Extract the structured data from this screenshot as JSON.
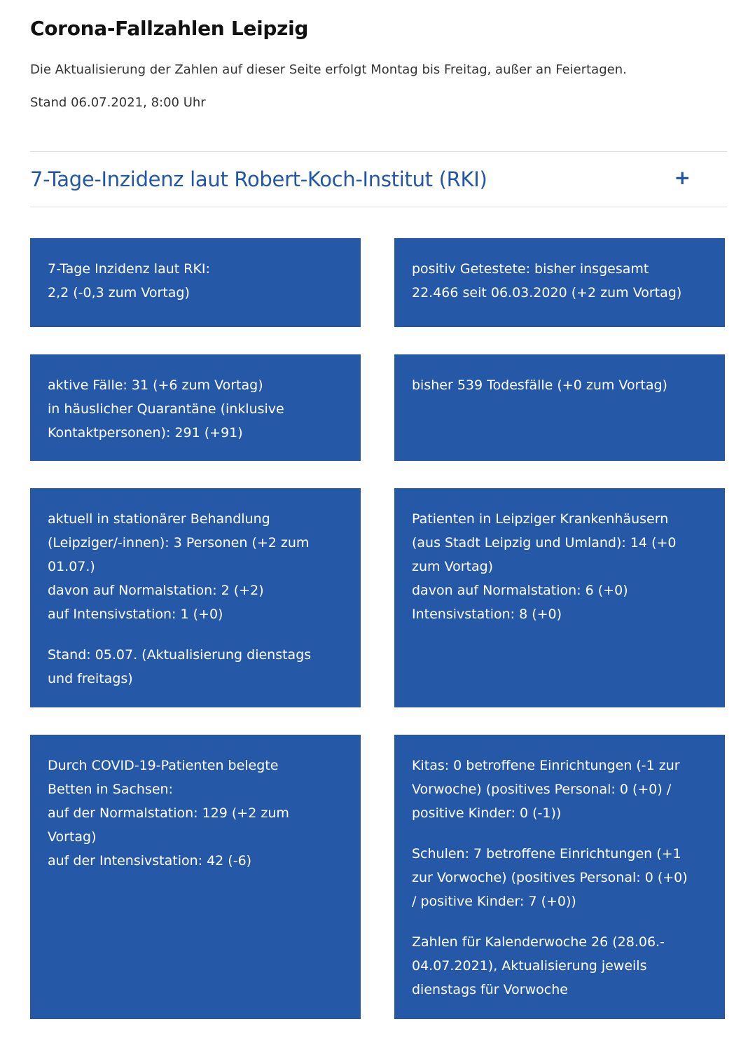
{
  "header": {
    "title": "Corona-Fallzahlen Leipzig",
    "intro": "Die Aktualisierung der Zahlen auf dieser Seite erfolgt Montag bis Freitag, außer an Feiertagen.",
    "stand": "Stand 06.07.2021, 8:00 Uhr"
  },
  "accordion": {
    "title": "7-Tage-Inzidenz laut Robert-Koch-Institut (RKI)",
    "toggle": "+"
  },
  "cards": {
    "inzidenz": {
      "p1": [
        "7-Tage Inzidenz laut RKI:",
        "2,2 (-0,3 zum Vortag)"
      ]
    },
    "positiv": {
      "p1": [
        "positiv Getestete: bisher insgesamt",
        "22.466 seit 06.03.2020 (+2 zum Vortag)"
      ]
    },
    "aktiv": {
      "p1": [
        "aktive Fälle: 31 (+6 zum Vortag)",
        "in häuslicher Quarantäne (inklusive",
        "Kontaktpersonen): 291 (+91)"
      ]
    },
    "todesfaelle": {
      "p1": [
        "bisher 539 Todesfälle (+0 zum Vortag)"
      ]
    },
    "stationaer": {
      "p1": [
        "aktuell in stationärer Behandlung",
        "(Leipziger/-innen): 3 Personen (+2 zum",
        "01.07.)",
        "davon auf Normalstation: 2 (+2)",
        "auf Intensivstation: 1 (+0)"
      ],
      "p2": [
        "Stand: 05.07. (Aktualisierung dienstags",
        "und freitags)"
      ]
    },
    "krankenhaeuser": {
      "p1": [
        "Patienten in Leipziger Krankenhäusern",
        "(aus Stadt Leipzig und Umland): 14 (+0",
        "zum Vortag)",
        "davon auf Normalstation: 6 (+0)",
        "Intensivstation: 8 (+0)"
      ]
    },
    "sachsen": {
      "p1": [
        "Durch COVID-19-Patienten belegte",
        "Betten in Sachsen:",
        "auf der Normalstation: 129 (+2 zum",
        "Vortag)",
        "auf der Intensivstation: 42 (-6)"
      ]
    },
    "kitas_schulen": {
      "p1": [
        "Kitas: 0 betroffene Einrichtungen (-1 zur",
        "Vorwoche) (positives Personal: 0 (+0) /",
        "positive Kinder: 0 (-1))"
      ],
      "p2": [
        "Schulen: 7 betroffene Einrichtungen (+1",
        "zur Vorwoche) (positives Personal: 0 (+0)",
        "/ positive Kinder: 7 (+0))"
      ],
      "p3": [
        "Zahlen für Kalenderwoche 26 (28.06.-",
        "04.07.2021), Aktualisierung jeweils",
        "dienstags für Vorwoche"
      ]
    }
  },
  "colors": {
    "card_bg": "#2658a8",
    "accent": "#2357a6"
  }
}
